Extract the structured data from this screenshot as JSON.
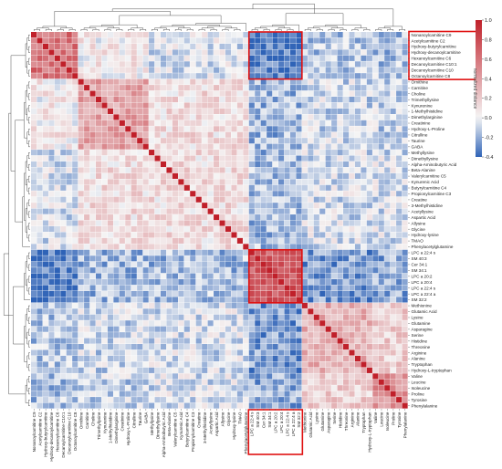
{
  "chart_data": {
    "type": "heatmap",
    "title": "",
    "xlabel": "",
    "ylabel": "",
    "clustered": true,
    "dendrograms": [
      "top",
      "left"
    ],
    "colormap": {
      "low": "#2f63b7",
      "mid": "#f5f5f5",
      "high": "#c0202a"
    },
    "value_range": [
      -0.4,
      1.0
    ],
    "colorbar": {
      "title": "normalized distance",
      "ticks": [
        1.0,
        0.8,
        0.6,
        0.4,
        0.2,
        0.0,
        -0.2,
        -0.4
      ]
    },
    "row_labels": [
      "Nonanoylcarnitine C9",
      "Acetylcarnitine C2",
      "Hydroxy-butyrylcarnitine",
      "Hydroxy-decanoylcarnitine",
      "Hexanoylcarnitine C6",
      "Decanoylcarnitine C10:1",
      "Decanoylcarnitine C10",
      "Octanoylcarnitine C8",
      "Ornithine",
      "Carnitine",
      "Choline",
      "Trimethyllysine",
      "Kynurenine",
      "1-Methylhistidine",
      "Dimethylarginine",
      "Creatinine",
      "Hydroxy-L-Proline",
      "Citrulline",
      "Taurine",
      "GABA",
      "Methyllysine",
      "Dimethyllysine",
      "Alpha-Aminobutyric Acid",
      "Beta-Alanine",
      "Valerylcarnitine C5",
      "Kynurenic Acid",
      "Butyrylcarnitine C4",
      "Propionylcarnitine C3",
      "Creatine",
      "3-Methylhistidine",
      "Acetyllysine",
      "Aspartic Acid",
      "Allysine",
      "Glycine",
      "Hydroxy-lysine",
      "TMAO",
      "Phenylacetylglutamine",
      "LPC a 22:4 s",
      "SM 40:3",
      "Cer 34:1",
      "SM 34:1",
      "LPC a 20:2",
      "LPC a 20:4",
      "LPC a 22:4 s",
      "LPC a 22:4 a",
      "SM 32:2",
      "Methionine",
      "Glutamic Acid",
      "Lysine",
      "Glutamine",
      "Asparagine",
      "Serine",
      "Histidine",
      "Threonine",
      "Arginine",
      "Alanine",
      "Tryptophan",
      "Hydroxy-L-tryptophan",
      "Valine",
      "Leucine",
      "Isoleucine",
      "Proline",
      "Tyrosine",
      "Phenylalanine"
    ],
    "col_labels": [
      "Nonanoylcarnitine C9",
      "Acetylcarnitine C2",
      "Hydroxy-butyrylcarnitine",
      "Hydroxy-decanoylcarnitine",
      "Hexanoylcarnitine C6",
      "Decanoylcarnitine C10:1",
      "Decanoylcarnitine C10",
      "Octanoylcarnitine C8",
      "Ornithine",
      "Carnitine",
      "Choline",
      "Trimethyllysine",
      "Kynurenine",
      "1-Methylhistidine",
      "Dimethylarginine",
      "Creatinine",
      "Hydroxy-L-Proline",
      "Citrulline",
      "Taurine",
      "GABA",
      "Methyllysine",
      "Dimethyllysine",
      "Alpha-Aminobutyric Acid",
      "Beta-Alanine",
      "Valerylcarnitine C5",
      "Kynurenic Acid",
      "Butyrylcarnitine C4",
      "Propionylcarnitine C3",
      "Creatine",
      "3-Methylhistidine",
      "Acetyllysine",
      "Aspartic Acid",
      "Allysine",
      "Glycine",
      "Hydroxy-lysine",
      "TMAO",
      "Phenylacetylglutamine",
      "LPC a 22:4 s",
      "SM 40:3",
      "Cer 34:1",
      "SM 34:1",
      "LPC a 20:2",
      "LPC a 20:4",
      "LPC a 22:4 s",
      "LPC a 22:4 a",
      "SM 32:2",
      "Methionine",
      "Glutamic Acid",
      "Lysine",
      "Glutamine",
      "Asparagine",
      "Serine",
      "Histidine",
      "Threonine",
      "Arginine",
      "Alanine",
      "Tryptophan",
      "Hydroxy-L-tryptophan",
      "Valine",
      "Leucine",
      "Isoleucine",
      "Proline",
      "Tyrosine",
      "Phenylalanine"
    ],
    "blocks": [
      {
        "start": 0,
        "end": 7,
        "within": 0.62
      },
      {
        "start": 8,
        "end": 19,
        "within": 0.38
      },
      {
        "start": 20,
        "end": 36,
        "within": 0.12
      },
      {
        "start": 37,
        "end": 45,
        "within": 0.72
      },
      {
        "start": 46,
        "end": 57,
        "within": 0.32
      },
      {
        "start": 58,
        "end": 63,
        "within": 0.48
      }
    ],
    "block_pairs": [
      {
        "a": 0,
        "b": 1,
        "value": 0.05
      },
      {
        "a": 0,
        "b": 2,
        "value": -0.05
      },
      {
        "a": 0,
        "b": 3,
        "value": -0.34
      },
      {
        "a": 0,
        "b": 4,
        "value": -0.12
      },
      {
        "a": 0,
        "b": 5,
        "value": -0.14
      },
      {
        "a": 1,
        "b": 2,
        "value": 0.12
      },
      {
        "a": 1,
        "b": 3,
        "value": -0.18
      },
      {
        "a": 1,
        "b": 4,
        "value": -0.08
      },
      {
        "a": 1,
        "b": 5,
        "value": -0.1
      },
      {
        "a": 2,
        "b": 3,
        "value": -0.16
      },
      {
        "a": 2,
        "b": 4,
        "value": -0.06
      },
      {
        "a": 2,
        "b": 5,
        "value": -0.06
      },
      {
        "a": 3,
        "b": 4,
        "value": -0.24
      },
      {
        "a": 3,
        "b": 5,
        "value": -0.2
      },
      {
        "a": 4,
        "b": 5,
        "value": 0.18
      }
    ],
    "diagonal_value": 1.0,
    "highlighted_regions": [
      {
        "rows": [
          0,
          7
        ],
        "cols": [
          37,
          45
        ]
      },
      {
        "rows": [
          37,
          45
        ],
        "cols": [
          37,
          45
        ]
      },
      {
        "rows": [
          0,
          7
        ],
        "labels": "rows"
      },
      {
        "cols": [
          37,
          45
        ],
        "labels": "cols"
      }
    ]
  }
}
